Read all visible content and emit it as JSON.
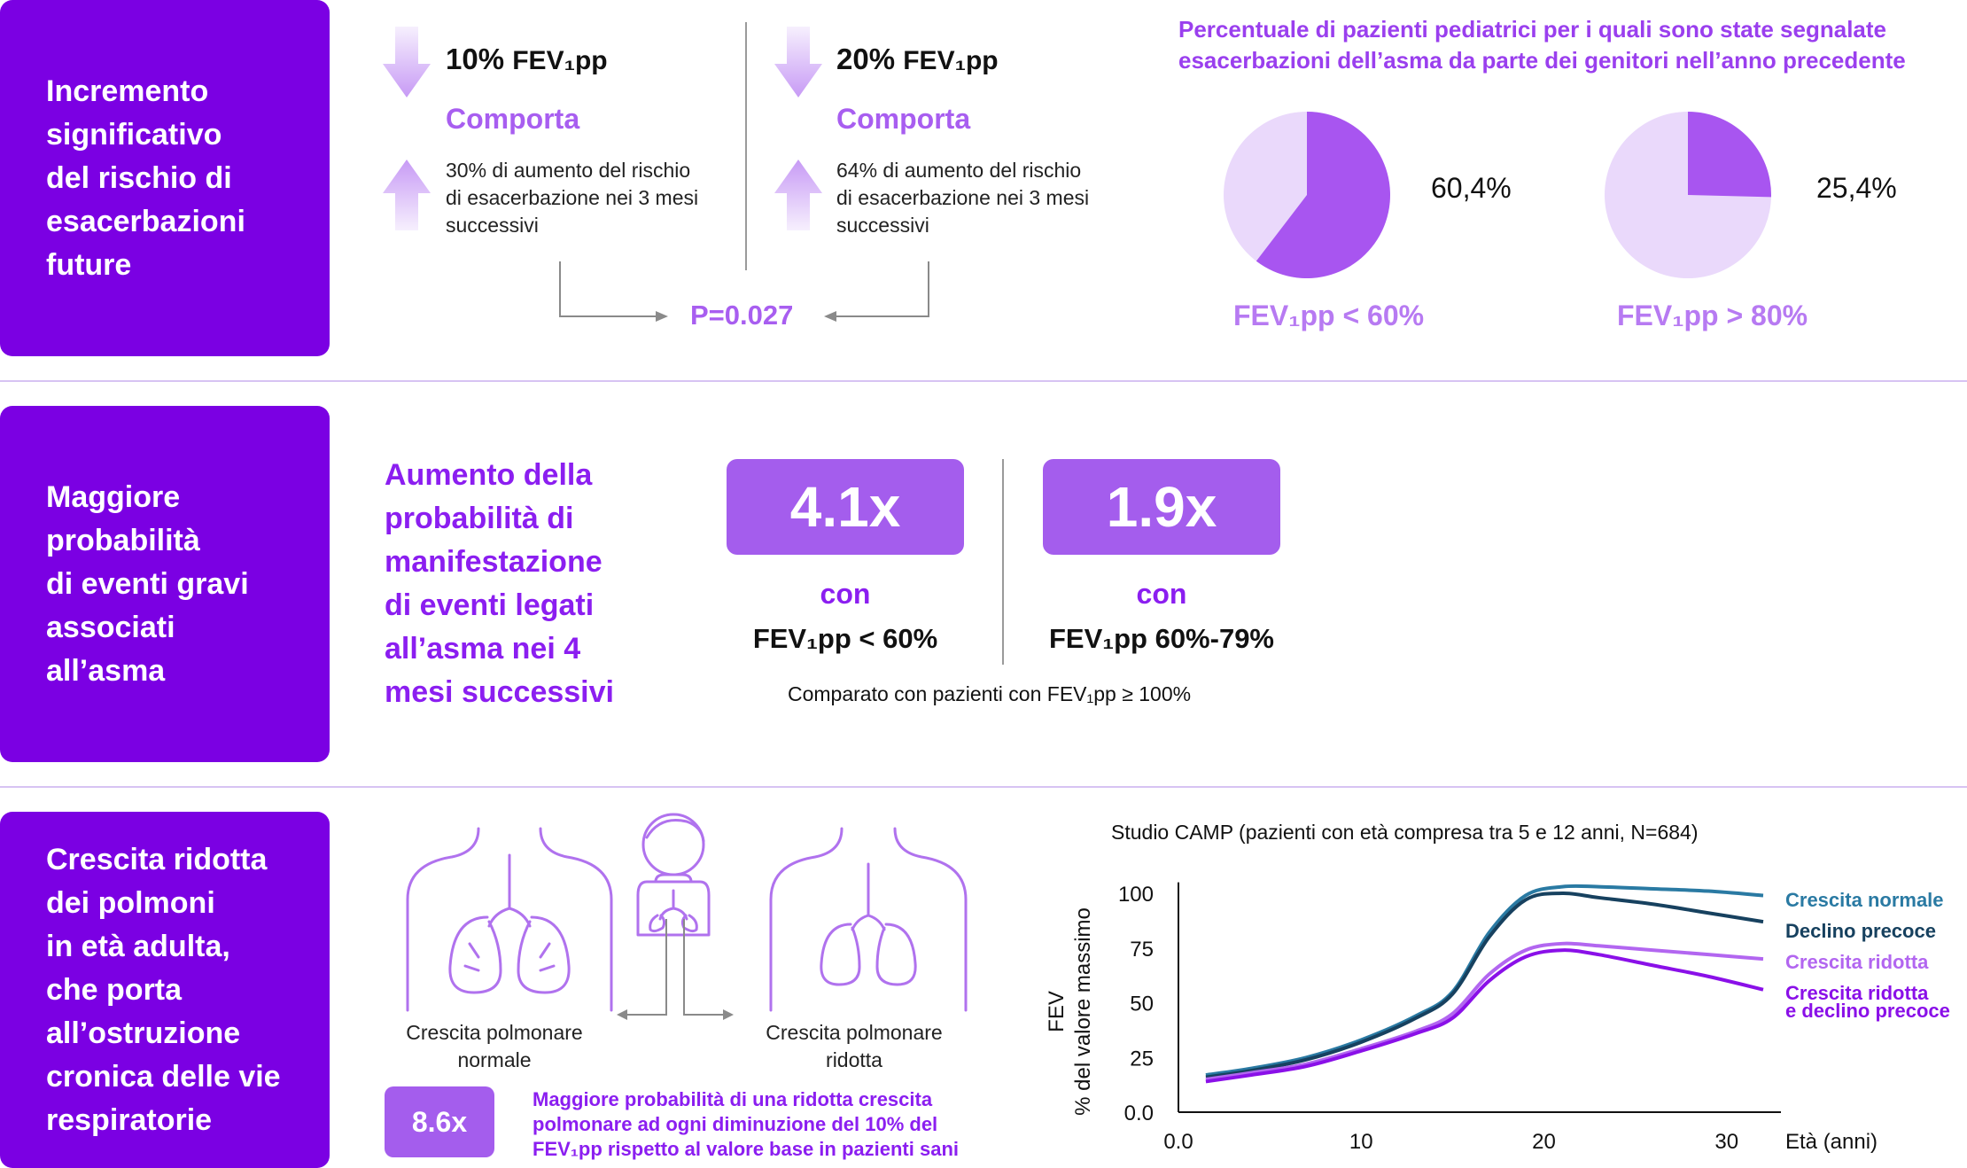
{
  "row1": {
    "side_label": "Incremento\nsignificativo\ndel rischio di\nesacerbazioni\nfuture",
    "col_a": {
      "pct": "10%",
      "fev": "FEV₁pp",
      "comporta": "Comporta",
      "text": "30% di aumento del rischio\ndi esacerbazione nei 3 mesi\nsuccessivi"
    },
    "col_b": {
      "pct": "20%",
      "fev": "FEV₁pp",
      "comporta": "Comporta",
      "text": "64% di aumento del rischio\ndi esacerbazione nei 3 mesi\nsuccessivi"
    },
    "p_value": "P=0.027",
    "pie_title": "Percentuale di pazienti pediatrici per i quali sono state segnalate\nesacerbazioni dell’asma da parte dei genitori nell’anno precedente",
    "pies": [
      {
        "value": 60.4,
        "pct_label": "60,4%",
        "label": "FEV₁pp < 60%"
      },
      {
        "value": 25.4,
        "pct_label": "25,4%",
        "label": "FEV₁pp > 80%"
      }
    ],
    "colors": {
      "pie_main": "#a855f0",
      "pie_rest": "#ead9fb",
      "arrow": "#c79af5"
    }
  },
  "row2": {
    "side_label": "Maggiore\nprobabilità\ndi eventi gravi\nassociati\nall’asma",
    "headline": "Aumento della\nprobabilità di\nmanifestazione\ndi eventi legati\nall’asma nei 4\nmesi successivi",
    "items": [
      {
        "mult": "4.1x",
        "con": "con",
        "cond": "FEV₁pp < 60%"
      },
      {
        "mult": "1.9x",
        "con": "con",
        "cond": "FEV₁pp 60%-79%"
      }
    ],
    "note": "Comparato con pazienti con FEV₁pp ≥ 100%"
  },
  "row3": {
    "side_label": "Crescita ridotta\ndei polmoni\nin età adulta,\nche porta\nall’ostruzione\ncronica delle vie\nrespiratorie",
    "lung_normal": "Crescita polmonare\nnormale",
    "lung_reduced": "Crescita polmonare\nridotta",
    "mult": "8.6x",
    "mult_note": "Maggiore probabilità di una ridotta crescita\npolmonare ad ogni diminuzione del 10% del\nFEV₁pp rispetto al valore base in pazienti sani"
  },
  "chart_data": {
    "type": "line",
    "title": "Studio CAMP (pazienti con età compresa tra 5 e 12 anni, N=684)",
    "xlabel": "Età (anni)",
    "ylabel": "FEV\n% del valore massimo",
    "xlim": [
      0,
      32
    ],
    "ylim": [
      0,
      100
    ],
    "xticks": [
      0,
      10,
      20,
      30
    ],
    "xtick_labels": [
      "0.0",
      "10",
      "20",
      "30"
    ],
    "yticks": [
      0,
      25,
      50,
      75,
      100
    ],
    "ytick_labels": [
      "0.0",
      "25",
      "50",
      "75",
      "100"
    ],
    "x": [
      1.5,
      4,
      7,
      10,
      13,
      15,
      17,
      19,
      21,
      23,
      26,
      29,
      32
    ],
    "series": [
      {
        "name": "Crescita normale",
        "color": "#2a7aa3",
        "values": [
          17,
          20,
          25,
          33,
          44,
          55,
          82,
          99,
          103,
          103,
          102,
          101,
          99
        ]
      },
      {
        "name": "Declino precoce",
        "color": "#17415f",
        "values": [
          16,
          19,
          24,
          32,
          43,
          54,
          80,
          97,
          100,
          98,
          95,
          91,
          87
        ]
      },
      {
        "name": "Crescita ridotta",
        "color": "#b266f0",
        "values": [
          15,
          18,
          22,
          29,
          37,
          45,
          63,
          74,
          77,
          76,
          74,
          72,
          70
        ]
      },
      {
        "name": "Crescita ridotta\ne declino precoce",
        "color": "#8a10e8",
        "values": [
          14,
          17,
          21,
          28,
          36,
          43,
          60,
          71,
          74,
          72,
          67,
          62,
          56
        ]
      }
    ]
  }
}
